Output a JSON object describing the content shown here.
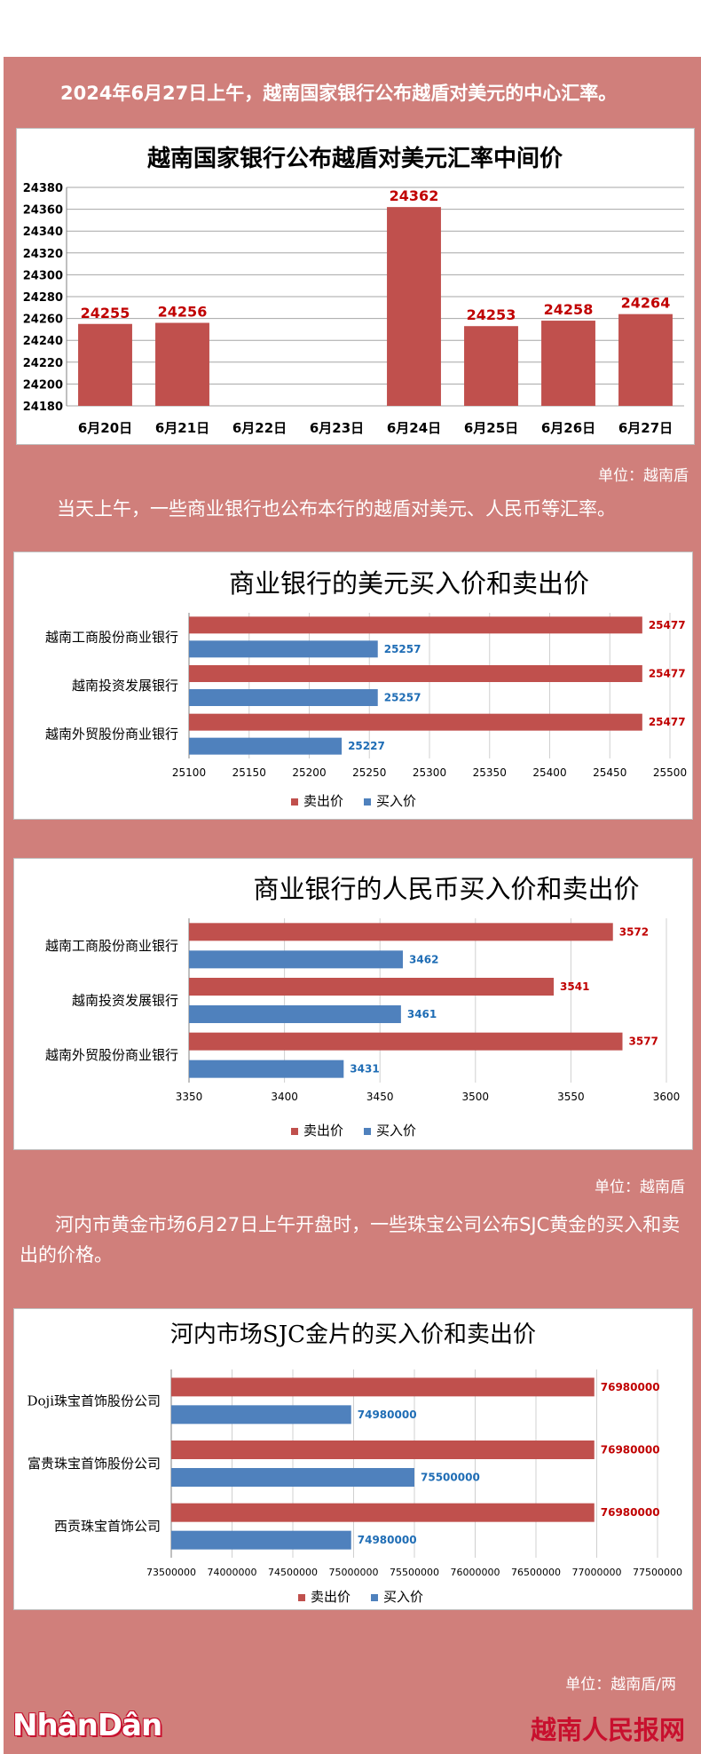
{
  "texts": {
    "intro1": "2024年6月27日上午，越南国家银行公布越盾对美元的中心汇率。",
    "unit1": "单位：越南盾",
    "intro2": "当天上午，一些商业银行也公布本行的越盾对美元、人民币等汇率。",
    "unit2": "单位：越南盾",
    "intro3": "河内市黄金市场6月27日上午开盘时，一些珠宝公司公布SJC黄金的买入和卖出的价格。",
    "unit3": "单位：越南盾/两",
    "logo_left": "NhânDân",
    "logo_right": "越南人民报网"
  },
  "colors": {
    "sell": "#c0504d",
    "buy": "#4f81bd",
    "sell_label": "#c00000",
    "buy_label": "#1f6db5",
    "background": "#d07f7b"
  },
  "chart_data": [
    {
      "type": "bar",
      "title": "越南国家银行公布越盾对美元汇率中间价",
      "categories": [
        "6月20日",
        "6月21日",
        "6月22日",
        "6月23日",
        "6月24日",
        "6月25日",
        "6月26日",
        "6月27日"
      ],
      "values": [
        24255,
        24256,
        null,
        null,
        24362,
        24253,
        24258,
        24264
      ],
      "data_labels": [
        "24255",
        "24256",
        "",
        "",
        "24362",
        "24253",
        "24258",
        "24264"
      ],
      "ylim": [
        24180,
        24380
      ],
      "yticks": [
        "24180",
        "24200",
        "24220",
        "24240",
        "24260",
        "24280",
        "24300",
        "24320",
        "24340",
        "24360",
        "24380"
      ],
      "grid": true
    },
    {
      "type": "bar",
      "orientation": "horizontal",
      "title": "商业银行的美元买入价和卖出价",
      "categories": [
        "越南工商股份商业银行",
        "越南投资发展银行",
        "越南外贸股份商业银行"
      ],
      "series": [
        {
          "name": "卖出价",
          "values": [
            25477,
            25477,
            25477
          ],
          "labels": [
            "25477",
            "25477",
            "25477"
          ]
        },
        {
          "name": "买入价",
          "values": [
            25257,
            25257,
            25227
          ],
          "labels": [
            "25257",
            "25257",
            "25227"
          ]
        }
      ],
      "xlim": [
        25100,
        25500
      ],
      "xticks": [
        "25100",
        "25150",
        "25200",
        "25250",
        "25300",
        "25350",
        "25400",
        "25450",
        "25500"
      ],
      "legend": "bottom"
    },
    {
      "type": "bar",
      "orientation": "horizontal",
      "title": "商业银行的人民币买入价和卖出价",
      "categories": [
        "越南工商股份商业银行",
        "越南投资发展银行",
        "越南外贸股份商业银行"
      ],
      "series": [
        {
          "name": "卖出价",
          "values": [
            3572,
            3541,
            3577
          ],
          "labels": [
            "3572",
            "3541",
            "3577"
          ]
        },
        {
          "name": "买入价",
          "values": [
            3462,
            3461,
            3431
          ],
          "labels": [
            "3462",
            "3461",
            "3431"
          ]
        }
      ],
      "xlim": [
        3350,
        3600
      ],
      "xticks": [
        "3350",
        "3400",
        "3450",
        "3500",
        "3550",
        "3600"
      ],
      "legend": "bottom"
    },
    {
      "type": "bar",
      "orientation": "horizontal",
      "title": "河内市场SJC金片的买入价和卖出价",
      "categories": [
        "Doji珠宝首饰股份公司",
        "富贵珠宝首饰股份公司",
        "西贡珠宝首饰公司"
      ],
      "series": [
        {
          "name": "卖出价",
          "values": [
            76980000,
            76980000,
            76980000
          ],
          "labels": [
            "76980000",
            "76980000",
            "76980000"
          ]
        },
        {
          "name": "买入价",
          "values": [
            74980000,
            75500000,
            74980000
          ],
          "labels": [
            "74980000",
            "75500000",
            "74980000"
          ]
        }
      ],
      "xlim": [
        73500000,
        77500000
      ],
      "xticks": [
        "73500000",
        "74000000",
        "74500000",
        "75000000",
        "75500000",
        "76000000",
        "76500000",
        "77000000",
        "77500000"
      ],
      "legend": "bottom"
    }
  ]
}
